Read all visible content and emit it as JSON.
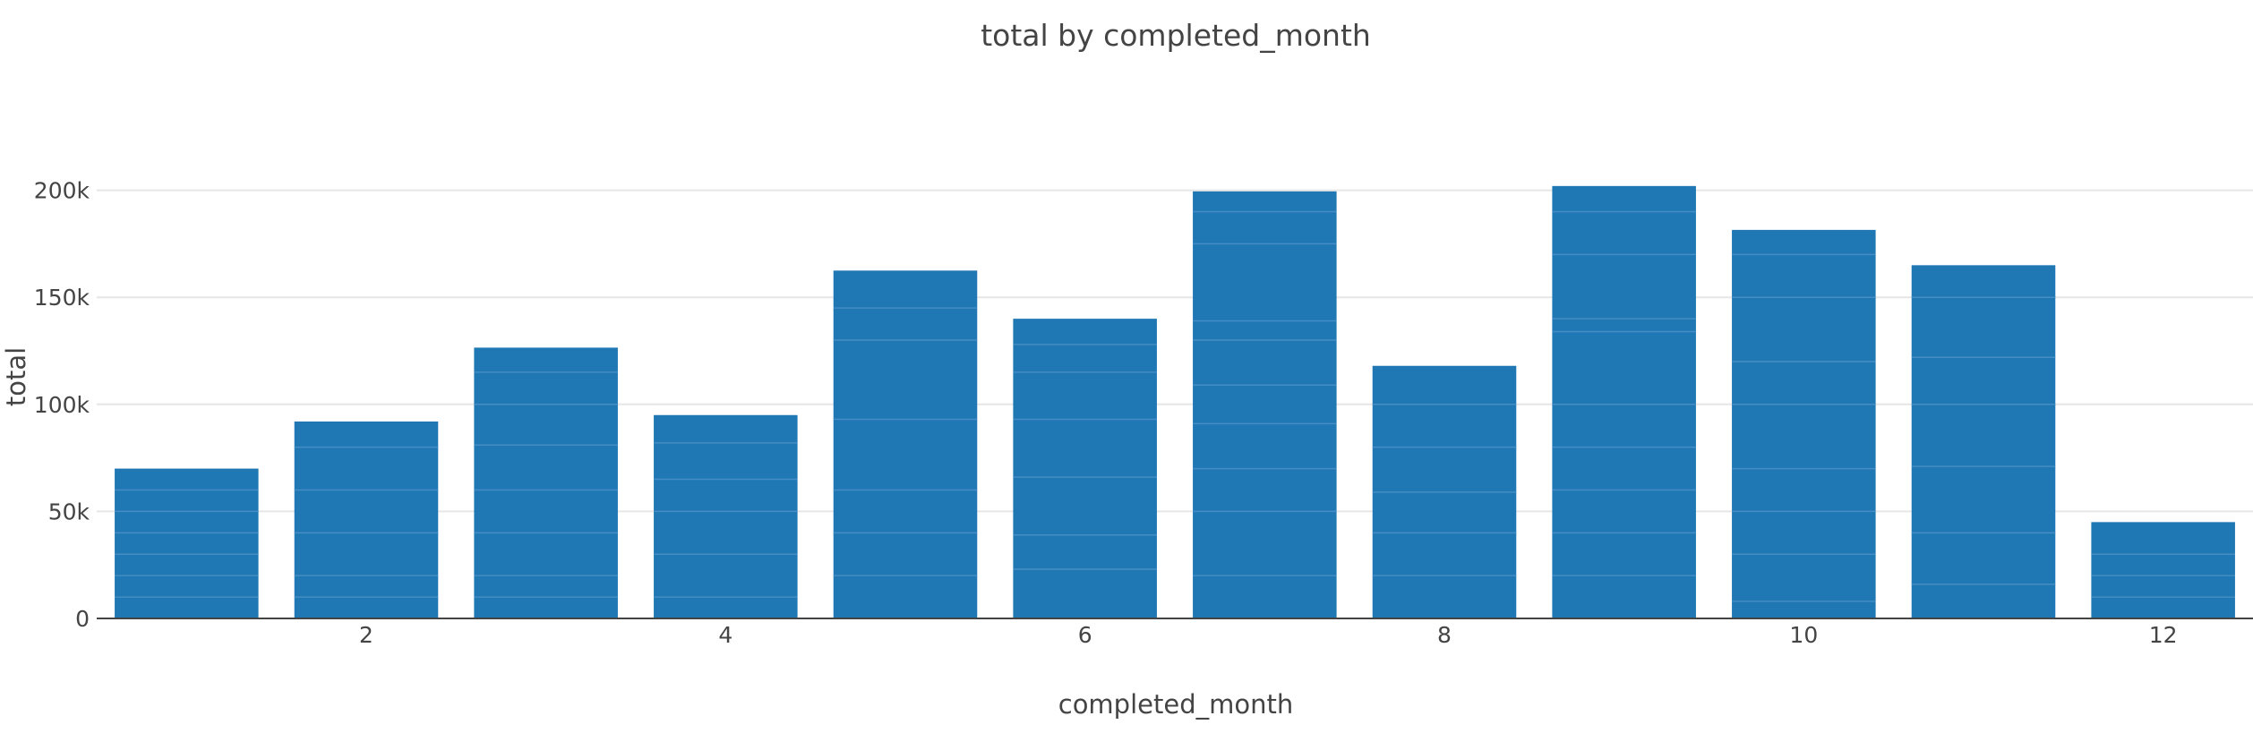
{
  "chart_data": {
    "type": "bar",
    "title": "total by completed_month",
    "xlabel": "completed_month",
    "ylabel": "total",
    "x": [
      1,
      2,
      3,
      4,
      5,
      6,
      7,
      8,
      9,
      10,
      11,
      12
    ],
    "values": [
      70000,
      92000,
      126500,
      95000,
      162500,
      140000,
      199500,
      118000,
      202000,
      181500,
      165000,
      45000
    ],
    "segments": [
      [
        10000,
        20000,
        30000,
        40000,
        50000,
        60000
      ],
      [
        10000,
        20000,
        40000,
        60000,
        80000
      ],
      [
        10000,
        20000,
        40000,
        60000,
        81000,
        100000,
        115000
      ],
      [
        10000,
        30000,
        50000,
        65000,
        82000
      ],
      [
        20000,
        40000,
        60000,
        93000,
        130000,
        145000
      ],
      [
        23000,
        39000,
        66000,
        93000,
        115000,
        128000
      ],
      [
        20000,
        50000,
        70000,
        91000,
        109000,
        130000,
        139000,
        175000,
        190000
      ],
      [
        20000,
        40000,
        59000,
        80000,
        100000
      ],
      [
        20000,
        40000,
        60000,
        80000,
        100000,
        134000,
        140000,
        170000,
        190000
      ],
      [
        8000,
        30000,
        50000,
        70000,
        100000,
        120000,
        150000,
        170000
      ],
      [
        16000,
        40000,
        71000,
        100000,
        122000,
        150000
      ],
      [
        10000,
        20000,
        30000
      ]
    ],
    "x_ticks": [
      2,
      4,
      6,
      8,
      10,
      12
    ],
    "y_ticks": [
      0,
      50000,
      100000,
      150000,
      200000
    ],
    "y_tick_labels": [
      "0",
      "50k",
      "100k",
      "150k",
      "200k"
    ],
    "xlim": [
      0.5,
      12.5
    ],
    "ylim": [
      0,
      222000
    ],
    "grid": true,
    "color": "#1f77b4"
  }
}
